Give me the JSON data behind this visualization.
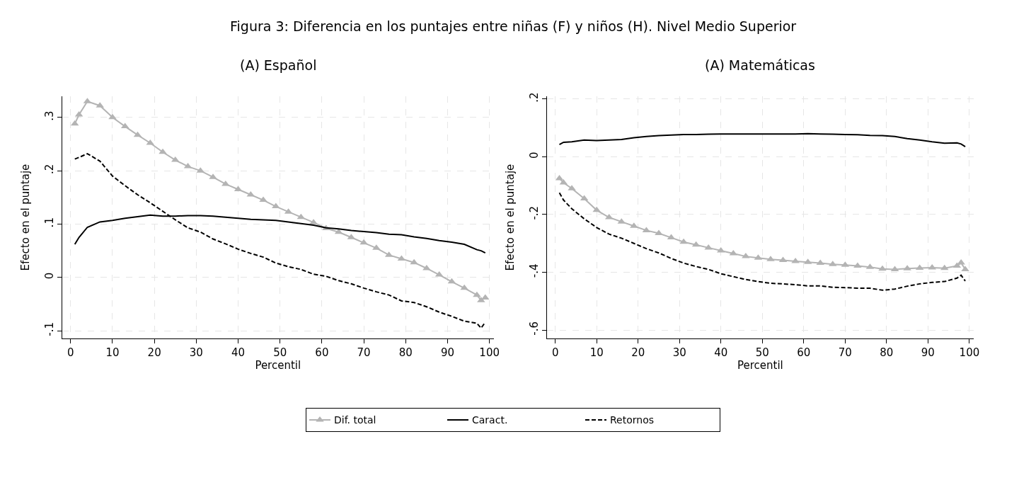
{
  "chart_data": [
    {
      "type": "line",
      "title": "(A) Español",
      "xlabel": "Percentil",
      "ylabel": "Efecto en el puntaje",
      "annotations": [
        "Figura 3: Diferencia en los puntajes entre niñas (F) y niños (H). Nivel Medio Superior"
      ],
      "x": [
        1,
        2,
        4,
        7,
        10,
        13,
        16,
        19,
        22,
        25,
        28,
        31,
        34,
        37,
        40,
        43,
        46,
        49,
        52,
        55,
        58,
        61,
        64,
        67,
        70,
        73,
        76,
        79,
        82,
        85,
        88,
        91,
        94,
        97,
        98,
        99
      ],
      "xlim": [
        -2,
        101
      ],
      "xticks": [
        0,
        10,
        20,
        30,
        40,
        50,
        60,
        70,
        80,
        90,
        100
      ],
      "ylim": [
        -0.115,
        0.34
      ],
      "yticks": [
        {
          "value": -0.1,
          "label": "-.1"
        },
        0,
        {
          "value": 0.1,
          "label": ".1"
        },
        {
          "value": 0.2,
          "label": ".2"
        },
        {
          "value": 0.3,
          "label": ".3"
        }
      ],
      "grid": true,
      "legend": "bottom",
      "series": [
        {
          "name": "Dif. total",
          "color": "#b4b4b4",
          "marker": "triangle",
          "line_style": "solid",
          "values": [
            0.288,
            0.305,
            0.33,
            0.322,
            0.3,
            0.283,
            0.267,
            0.252,
            0.235,
            0.22,
            0.208,
            0.2,
            0.188,
            0.175,
            0.165,
            0.155,
            0.145,
            0.133,
            0.123,
            0.113,
            0.103,
            0.092,
            0.085,
            0.075,
            0.065,
            0.055,
            0.042,
            0.035,
            0.028,
            0.017,
            0.005,
            -0.008,
            -0.02,
            -0.033,
            -0.043,
            -0.038
          ]
        },
        {
          "name": "Caract.",
          "color": "#000000",
          "marker": "none",
          "line_style": "solid",
          "values": [
            0.062,
            0.075,
            0.094,
            0.104,
            0.107,
            0.111,
            0.114,
            0.117,
            0.115,
            0.115,
            0.116,
            0.116,
            0.115,
            0.113,
            0.111,
            0.109,
            0.108,
            0.107,
            0.104,
            0.101,
            0.098,
            0.093,
            0.091,
            0.088,
            0.086,
            0.084,
            0.081,
            0.08,
            0.076,
            0.073,
            0.069,
            0.066,
            0.062,
            0.052,
            0.05,
            0.046
          ]
        },
        {
          "name": "Retornos",
          "color": "#000000",
          "marker": "none",
          "line_style": "dashed",
          "values": [
            0.222,
            0.225,
            0.232,
            0.218,
            0.19,
            0.172,
            0.155,
            0.14,
            0.124,
            0.108,
            0.093,
            0.085,
            0.072,
            0.063,
            0.053,
            0.045,
            0.038,
            0.027,
            0.02,
            0.015,
            0.006,
            0.002,
            -0.006,
            -0.012,
            -0.02,
            -0.027,
            -0.033,
            -0.044,
            -0.047,
            -0.055,
            -0.065,
            -0.073,
            -0.082,
            -0.086,
            -0.095,
            -0.084
          ]
        }
      ]
    },
    {
      "type": "line",
      "title": "(A) Matemáticas",
      "xlabel": "Percentil",
      "ylabel": "Efecto en el puntaje",
      "x": [
        1,
        2,
        4,
        7,
        10,
        13,
        16,
        19,
        22,
        25,
        28,
        31,
        34,
        37,
        40,
        43,
        46,
        49,
        52,
        55,
        58,
        61,
        64,
        67,
        70,
        73,
        76,
        79,
        82,
        85,
        88,
        91,
        94,
        97,
        98,
        99
      ],
      "xlim": [
        -2,
        101
      ],
      "xticks": [
        0,
        10,
        20,
        30,
        40,
        50,
        60,
        70,
        80,
        90,
        100
      ],
      "ylim": [
        -0.63,
        0.21
      ],
      "yticks": [
        {
          "value": -0.6,
          "label": "-.6"
        },
        {
          "value": -0.4,
          "label": "-.4"
        },
        {
          "value": -0.2,
          "label": "-.2"
        },
        0,
        {
          "value": 0.2,
          "label": ".2"
        }
      ],
      "grid": true,
      "series": [
        {
          "color": "#b4b4b4",
          "marker": "triangle",
          "line_style": "solid",
          "values": [
            -0.075,
            -0.09,
            -0.11,
            -0.145,
            -0.185,
            -0.21,
            -0.225,
            -0.24,
            -0.255,
            -0.265,
            -0.28,
            -0.295,
            -0.305,
            -0.315,
            -0.325,
            -0.335,
            -0.345,
            -0.35,
            -0.355,
            -0.358,
            -0.362,
            -0.365,
            -0.368,
            -0.372,
            -0.375,
            -0.378,
            -0.382,
            -0.388,
            -0.39,
            -0.387,
            -0.385,
            -0.384,
            -0.386,
            -0.378,
            -0.367,
            -0.39
          ]
        },
        {
          "color": "#000000",
          "marker": "none",
          "line_style": "solid",
          "values": [
            0.042,
            0.05,
            0.052,
            0.058,
            0.056,
            0.058,
            0.06,
            0.066,
            0.07,
            0.073,
            0.075,
            0.077,
            0.077,
            0.078,
            0.079,
            0.079,
            0.079,
            0.079,
            0.079,
            0.079,
            0.079,
            0.08,
            0.079,
            0.078,
            0.077,
            0.076,
            0.074,
            0.073,
            0.07,
            0.063,
            0.058,
            0.052,
            0.047,
            0.048,
            0.044,
            0.035
          ]
        },
        {
          "color": "#000000",
          "marker": "none",
          "line_style": "dashed",
          "values": [
            -0.125,
            -0.15,
            -0.18,
            -0.215,
            -0.245,
            -0.268,
            -0.282,
            -0.3,
            -0.318,
            -0.333,
            -0.352,
            -0.368,
            -0.38,
            -0.39,
            -0.405,
            -0.415,
            -0.425,
            -0.432,
            -0.438,
            -0.44,
            -0.443,
            -0.447,
            -0.447,
            -0.452,
            -0.453,
            -0.455,
            -0.455,
            -0.462,
            -0.458,
            -0.448,
            -0.44,
            -0.435,
            -0.432,
            -0.42,
            -0.41,
            -0.43
          ]
        }
      ]
    }
  ]
}
